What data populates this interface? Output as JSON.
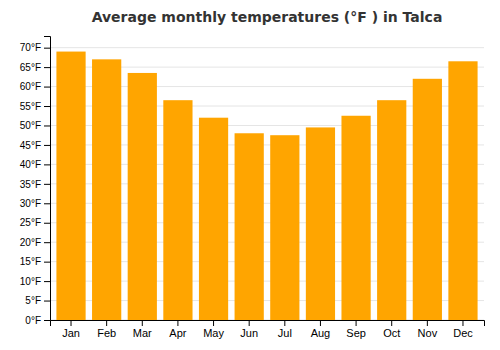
{
  "chart_data": {
    "type": "bar",
    "title": "Average monthly temperatures (°F ) in Talca",
    "categories": [
      "Jan",
      "Feb",
      "Mar",
      "Apr",
      "May",
      "Jun",
      "Jul",
      "Aug",
      "Sep",
      "Oct",
      "Nov",
      "Dec"
    ],
    "values": [
      69,
      67,
      63.5,
      56.5,
      52,
      48,
      47.5,
      49.5,
      52.5,
      56.5,
      62,
      66.5
    ],
    "color": "#FFA500",
    "ylim": [
      0,
      73
    ],
    "yticks": [
      {
        "value": 0,
        "label": "0°F"
      },
      {
        "value": 5,
        "label": "5°F"
      },
      {
        "value": 10,
        "label": "10°F"
      },
      {
        "value": 15,
        "label": "15°F"
      },
      {
        "value": 20,
        "label": "20°F"
      },
      {
        "value": 25,
        "label": "25°F"
      },
      {
        "value": 30,
        "label": "30°F"
      },
      {
        "value": 35,
        "label": "35°F"
      },
      {
        "value": 40,
        "label": "40°F"
      },
      {
        "value": 45,
        "label": "45°F"
      },
      {
        "value": 50,
        "label": "50°F"
      },
      {
        "value": 55,
        "label": "55°F"
      },
      {
        "value": 60,
        "label": "60°F"
      },
      {
        "value": 65,
        "label": "65°F"
      },
      {
        "value": 70,
        "label": "70°F"
      }
    ],
    "grid": true
  }
}
